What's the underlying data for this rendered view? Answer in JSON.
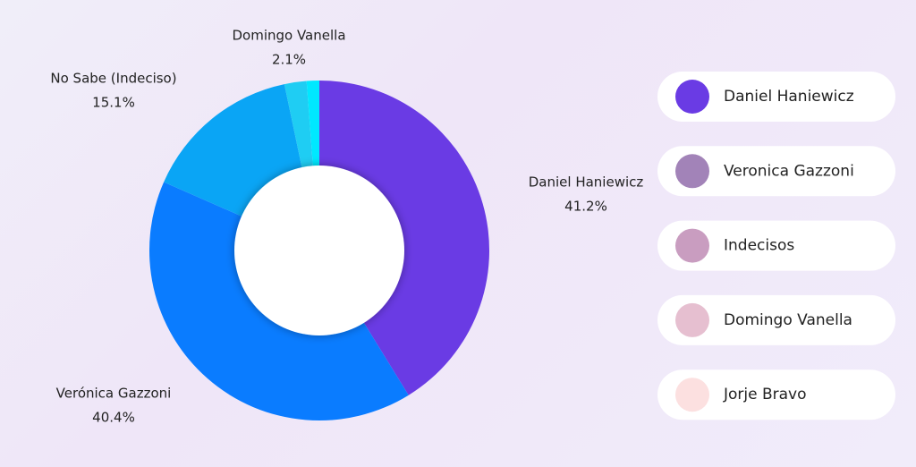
{
  "chart_data": {
    "type": "donut",
    "categories": [
      "Daniel Haniewicz",
      "Verónica Gazzoni",
      "No Sabe (Indeciso)",
      "Domingo Vanella",
      null
    ],
    "values": [
      41.2,
      40.4,
      15.1,
      2.1,
      1.2
    ],
    "value_labels": [
      "41.2%",
      "40.4%",
      "15.1%",
      "2.1%",
      null
    ],
    "colors": [
      "#6a3be4",
      "#0a7cff",
      "#0aa5f5",
      "#1fcdf3",
      "#00e8ff"
    ]
  },
  "legend": [
    {
      "name": "Daniel Haniewicz",
      "color": "#6a3be4"
    },
    {
      "name": "Veronica Gazzoni",
      "color": "#a283b8"
    },
    {
      "name": "Indecisos",
      "color": "#c99dc0"
    },
    {
      "name": "Domingo Vanella",
      "color": "#e6bfd0"
    },
    {
      "name": "Jorje Bravo",
      "color": "#fce0e0"
    }
  ]
}
